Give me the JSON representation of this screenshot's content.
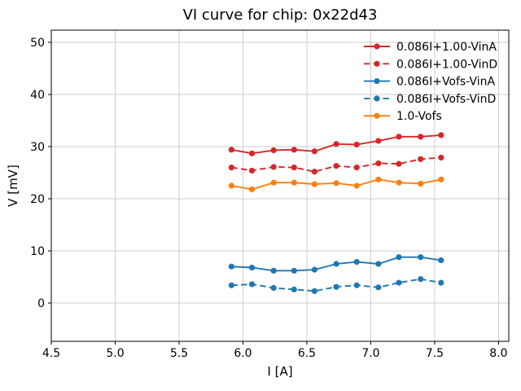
{
  "chart_data": {
    "type": "line",
    "title": "VI curve for chip: 0x22d43",
    "xlabel": "I [A]",
    "ylabel": "V [mV]",
    "xlim": [
      4.5,
      8.08
    ],
    "ylim": [
      -7.34,
      52.34
    ],
    "xticks": [
      4.5,
      5.0,
      5.5,
      6.0,
      6.5,
      7.0,
      7.5,
      8.0
    ],
    "xtick_labels": [
      "4.5",
      "5.0",
      "5.5",
      "6.0",
      "6.5",
      "7.0",
      "7.5",
      "8.0"
    ],
    "yticks": [
      0,
      10,
      20,
      30,
      40,
      50
    ],
    "ytick_labels": [
      "0",
      "10",
      "20",
      "30",
      "40",
      "50"
    ],
    "grid": true,
    "grid_color": "#cccccc",
    "spine_color": "#000000",
    "legend_position": "upper right",
    "legend_frame": false,
    "x": [
      5.91,
      6.07,
      6.24,
      6.4,
      6.56,
      6.73,
      6.89,
      7.06,
      7.22,
      7.39,
      7.55
    ],
    "series": [
      {
        "name": "0.086I+1.00-VinA",
        "color": "#d62728",
        "style": "solid",
        "marker": "circle",
        "values": [
          29.4,
          28.7,
          29.3,
          29.4,
          29.1,
          30.5,
          30.4,
          31.1,
          31.9,
          31.9,
          32.2
        ]
      },
      {
        "name": "0.086I+1.00-VinD",
        "color": "#d62728",
        "style": "dashed",
        "marker": "circle",
        "values": [
          26.0,
          25.4,
          26.1,
          26.0,
          25.2,
          26.3,
          26.0,
          26.8,
          26.7,
          27.6,
          27.9
        ]
      },
      {
        "name": "0.086I+Vofs-VinA",
        "color": "#1f77b4",
        "style": "solid",
        "marker": "circle",
        "values": [
          7.0,
          6.8,
          6.2,
          6.2,
          6.4,
          7.5,
          7.9,
          7.5,
          8.8,
          8.8,
          8.2
        ]
      },
      {
        "name": "0.086I+Vofs-VinD",
        "color": "#1f77b4",
        "style": "dashed",
        "marker": "circle",
        "values": [
          3.4,
          3.6,
          2.9,
          2.6,
          2.3,
          3.1,
          3.4,
          3.0,
          3.9,
          4.6,
          3.9
        ]
      },
      {
        "name": "1.0-Vofs",
        "color": "#ff7f0e",
        "style": "solid",
        "marker": "circle",
        "values": [
          22.5,
          21.8,
          23.1,
          23.1,
          22.8,
          23.0,
          22.5,
          23.7,
          23.1,
          22.9,
          23.7
        ]
      }
    ]
  }
}
